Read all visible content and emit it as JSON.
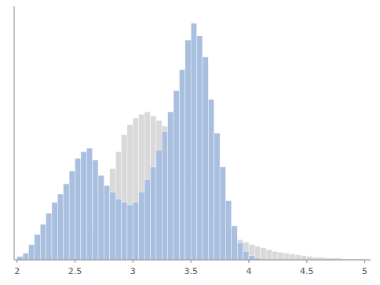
{
  "chart_data": {
    "type": "histogram",
    "bins": [
      2,
      2.05,
      2.1,
      2.15,
      2.2,
      2.25,
      2.3,
      2.35,
      2.4,
      2.45,
      2.5,
      2.55,
      2.6,
      2.65,
      2.7,
      2.75,
      2.8,
      2.85,
      2.9,
      2.95,
      3,
      3.05,
      3.1,
      3.15,
      3.2,
      3.25,
      3.3,
      3.35,
      3.4,
      3.45,
      3.5,
      3.55,
      3.6,
      3.65,
      3.7,
      3.75,
      3.8,
      3.85,
      3.9,
      3.95,
      4,
      4.05,
      4.1,
      4.15,
      4.2,
      4.25,
      4.3,
      4.35,
      4.4,
      4.45,
      4.5,
      4.55,
      4.6,
      4.65,
      4.7,
      4.75,
      4.8,
      4.85,
      4.9,
      4.95,
      5,
      5.05
    ],
    "series": [
      {
        "color": "#d9d9d9",
        "values": [
          0,
          0,
          0,
          0,
          0,
          0,
          0,
          0,
          0,
          0,
          0,
          0,
          18,
          35,
          60,
          85,
          108,
          128,
          148,
          160,
          168,
          172,
          175,
          170,
          165,
          158,
          148,
          135,
          118,
          100,
          85,
          72,
          62,
          53,
          45,
          38,
          33,
          28,
          24,
          21,
          18,
          16,
          14,
          12,
          10,
          9,
          8,
          7,
          6,
          5,
          4,
          3,
          3,
          2,
          2,
          2,
          1,
          1,
          1,
          1,
          0
        ]
      },
      {
        "color": "#a8bfdf",
        "values": [
          4,
          8,
          18,
          30,
          42,
          55,
          68,
          78,
          90,
          105,
          120,
          128,
          132,
          118,
          100,
          88,
          80,
          72,
          68,
          65,
          68,
          80,
          95,
          110,
          130,
          152,
          175,
          200,
          225,
          260,
          280,
          265,
          240,
          190,
          150,
          110,
          70,
          40,
          20,
          10,
          5,
          2,
          0,
          0,
          0,
          0,
          0,
          0,
          0,
          0,
          0,
          0,
          0,
          0,
          0,
          0,
          0,
          0,
          0,
          0,
          0
        ]
      }
    ],
    "xlim": [
      1.975,
      5.05
    ],
    "ylim": [
      0,
      300
    ],
    "xticks": [
      2,
      2.5,
      3,
      3.5,
      4,
      4.5,
      5
    ],
    "tick_labels": "x"
  }
}
